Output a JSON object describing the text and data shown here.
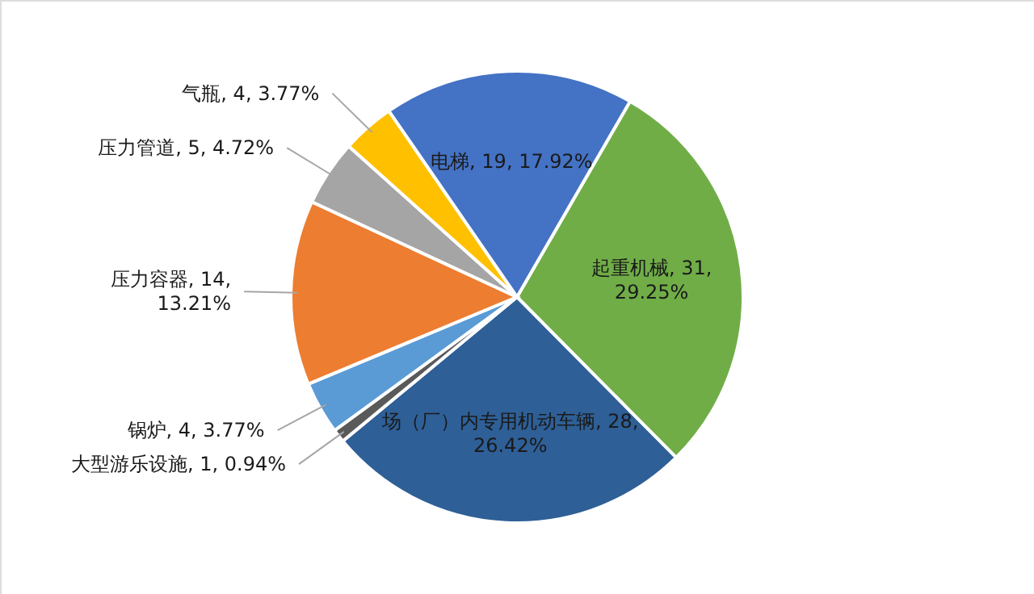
{
  "chart_data": {
    "type": "pie",
    "categories": [
      "起重机械",
      "场（厂）内专用机动车辆",
      "大型游乐设施",
      "锅炉",
      "压力容器",
      "压力管道",
      "气瓶",
      "电梯"
    ],
    "values": [
      31,
      28,
      1,
      4,
      14,
      5,
      4,
      19
    ],
    "colors": [
      "#70ad47",
      "#2e5f97",
      "#5a5a5a",
      "#5b9bd5",
      "#ed7d31",
      "#a5a5a5",
      "#ffc000",
      "#4472c4"
    ],
    "value_labels": [
      "31,\n29.25%",
      "28,\n26.42%",
      "1, 0.94%",
      "4, 3.77%",
      "14,\n13.21%",
      "5, 4.72%",
      "4, 3.77%",
      "19, 17.92%"
    ]
  }
}
